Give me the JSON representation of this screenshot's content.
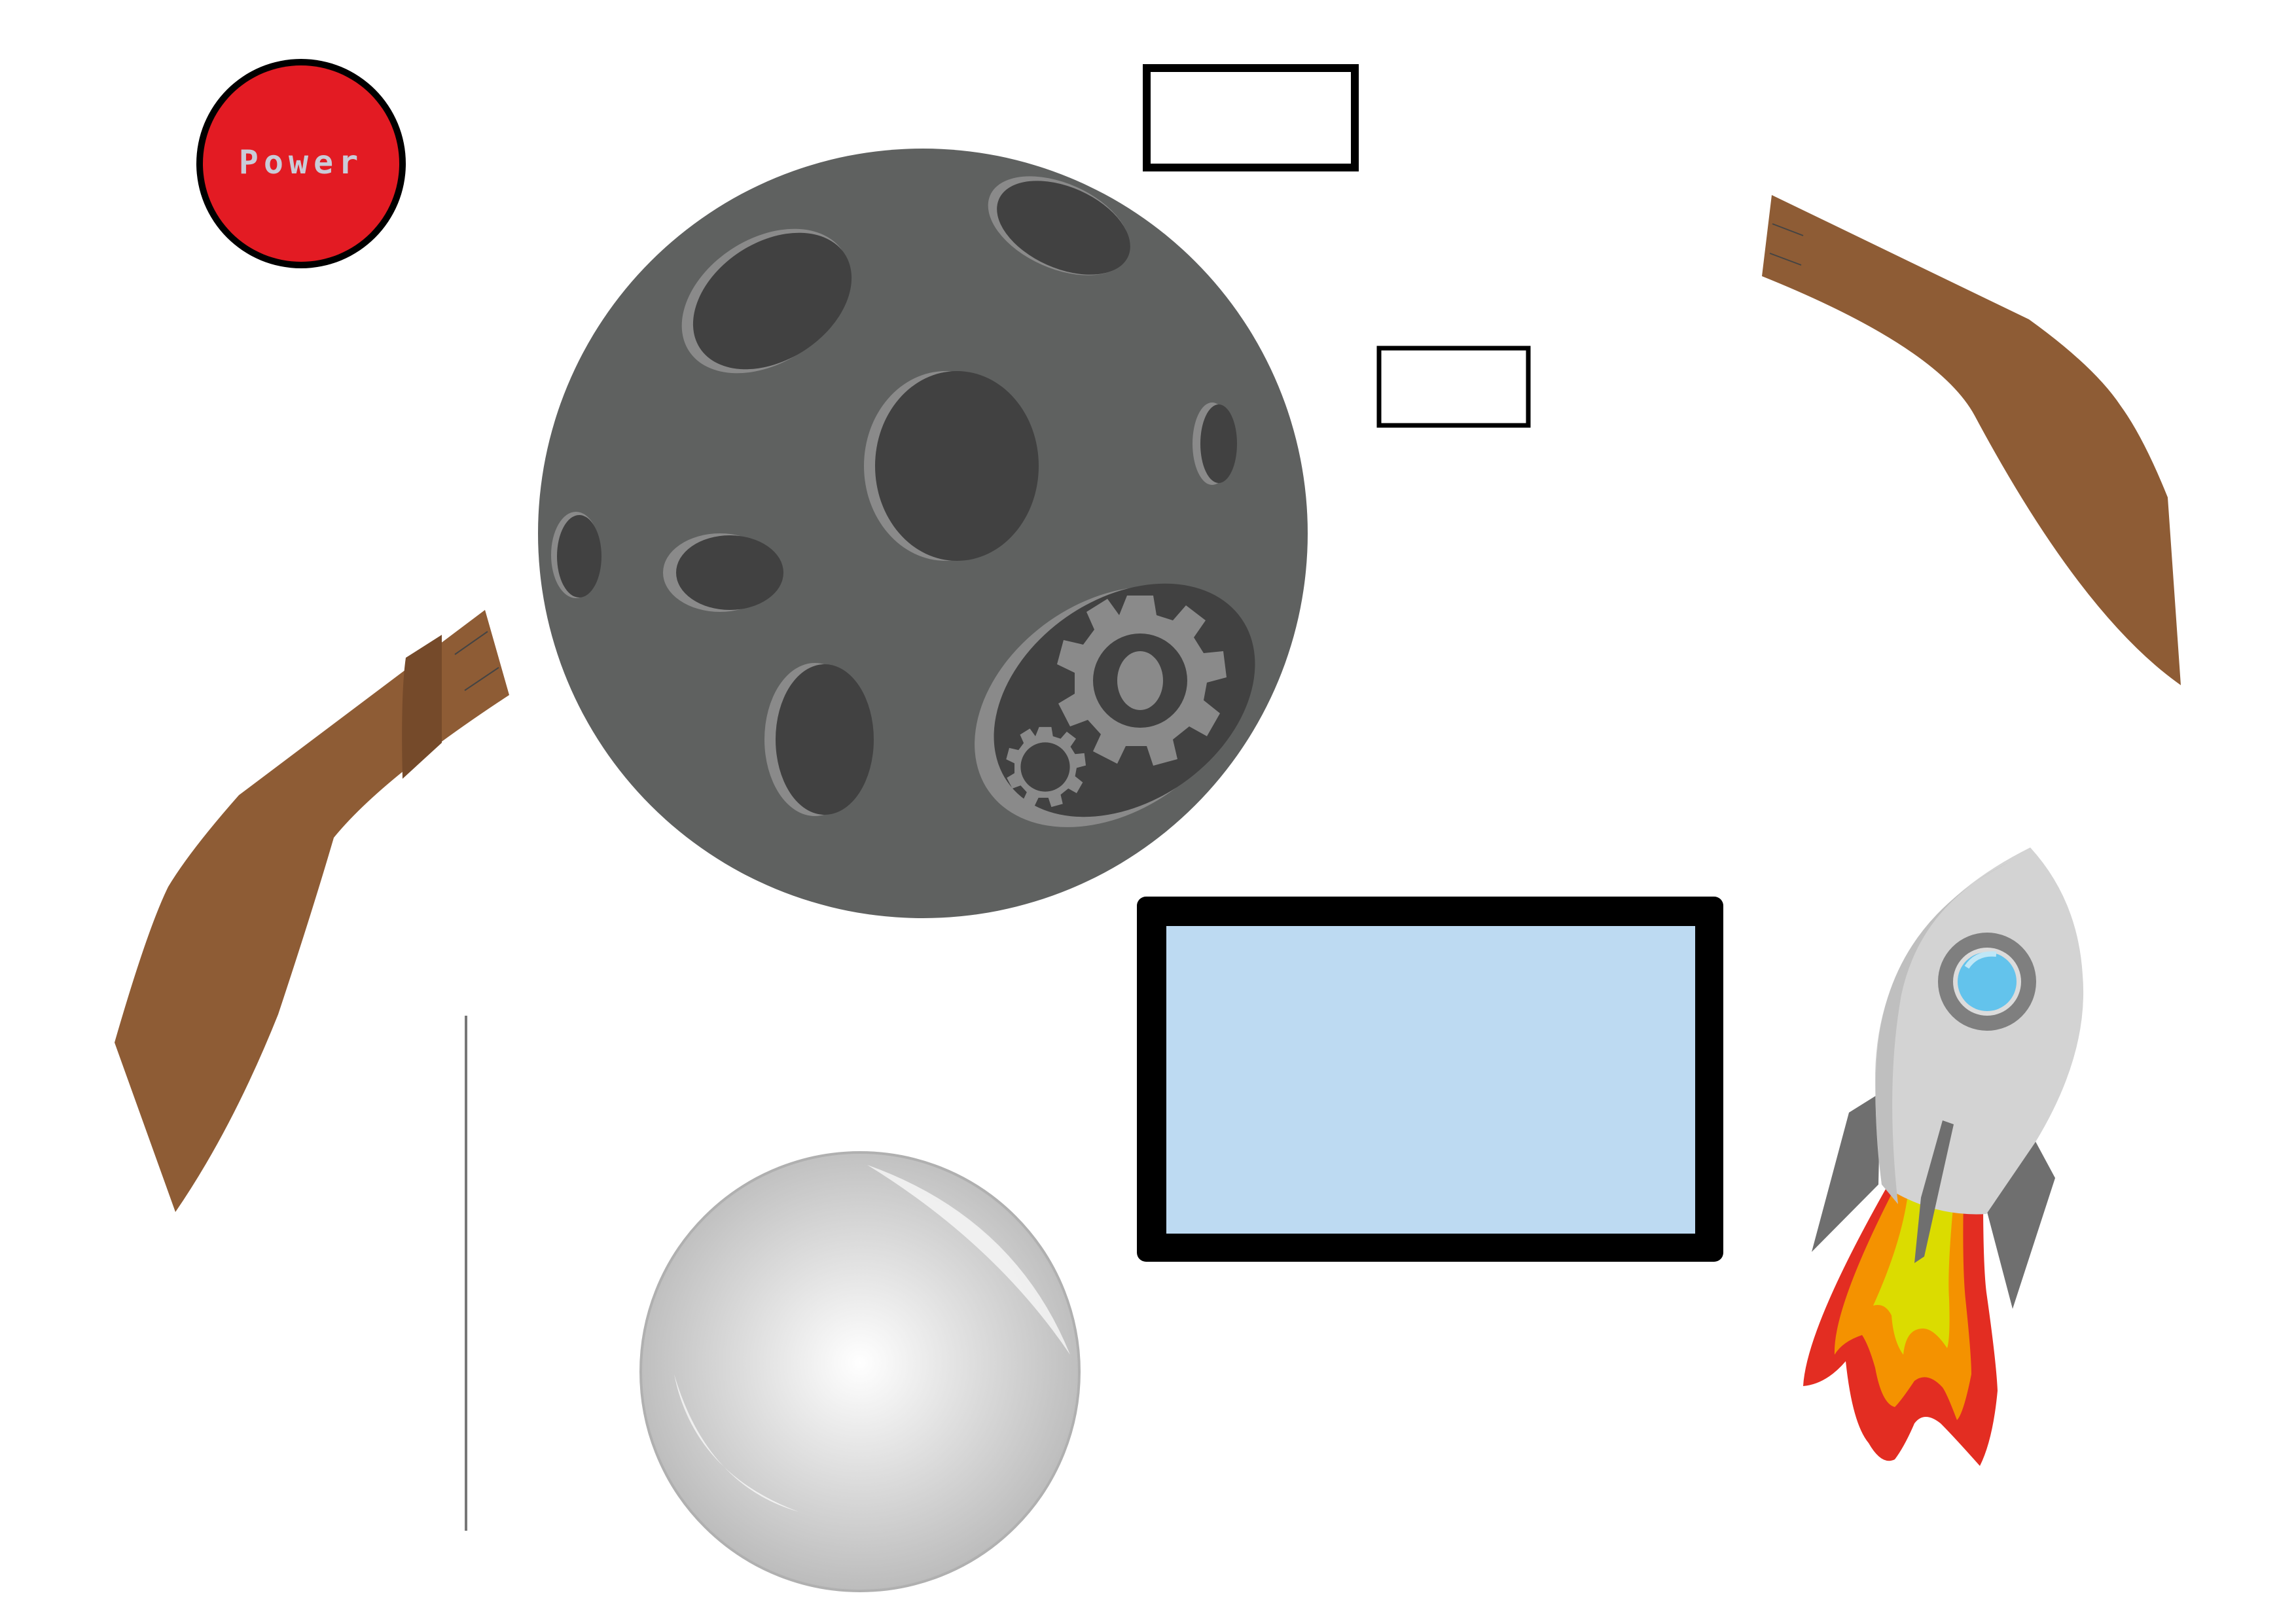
{
  "power_button": {
    "label": "Power",
    "fill": "#e31b23",
    "ring": "#000000"
  },
  "moon": {
    "surface": "#5f6160",
    "crater": "#414141",
    "crater_rim": "#8a8a8a",
    "gear": "#8a8a8a"
  },
  "boomerangs": {
    "color": "#8e5c35",
    "shade": "#754a2a"
  },
  "screen": {
    "fill": "#bddaf2",
    "frame": "#000000"
  },
  "rocket": {
    "body": "#d3d3d3",
    "fin": "#6f6f6f",
    "window": "#63c3ec",
    "window_ring": "#7f7f7f",
    "flame_outer": "#e32d22",
    "flame_mid": "#f49200",
    "flame_inner": "#dbdc00"
  },
  "sphere": {
    "light": "#ffffff",
    "dark": "#b8b8b8"
  },
  "empty_boxes": {
    "stroke": "#000000"
  }
}
